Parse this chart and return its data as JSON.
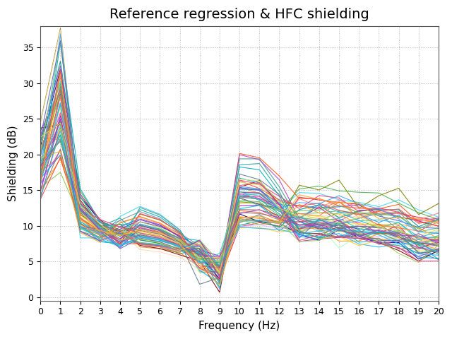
{
  "title": "Reference regression & HFC shielding",
  "xlabel": "Frequency (Hz)",
  "ylabel": "Shielding (dB)",
  "xlim": [
    0,
    20
  ],
  "ylim": [
    -0.5,
    38
  ],
  "xticks": [
    0,
    1,
    2,
    3,
    4,
    5,
    6,
    7,
    8,
    9,
    10,
    11,
    12,
    13,
    14,
    15,
    16,
    17,
    18,
    19,
    20
  ],
  "yticks": [
    0,
    5,
    10,
    15,
    20,
    25,
    30,
    35
  ],
  "n_lines": 60,
  "seed": 42,
  "background_color": "#ffffff",
  "grid_color": "#b0b0b0",
  "title_fontsize": 14,
  "axis_fontsize": 11,
  "tick_fontsize": 9,
  "linewidth": 0.8
}
